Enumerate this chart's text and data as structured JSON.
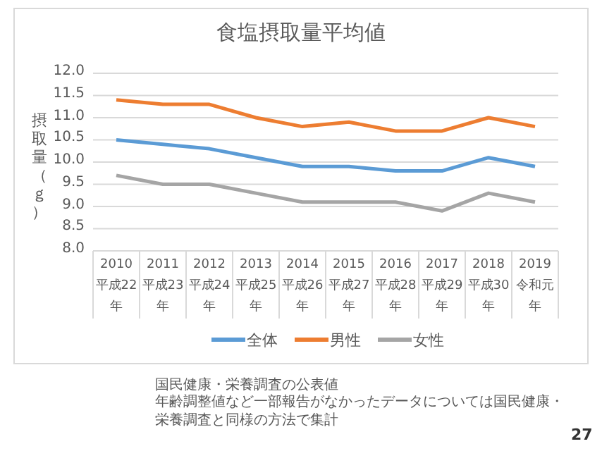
{
  "chart_data": {
    "type": "line",
    "title": "食塩摂取量平均値",
    "ylabel": "摂取量（ｇ）",
    "categories": [
      "2010 平成22年",
      "2011 平成23年",
      "2012 平成24年",
      "2013 平成25年",
      "2014 平成26年",
      "2015 平成27年",
      "2016 平成28年",
      "2017 平成29年",
      "2018 平成30年",
      "2019 令和元年"
    ],
    "series": [
      {
        "name": "全体",
        "color": "#5b9bd5",
        "values": [
          10.5,
          10.4,
          10.3,
          10.1,
          9.9,
          9.9,
          9.8,
          9.8,
          10.1,
          9.9
        ]
      },
      {
        "name": "男性",
        "color": "#ed7d31",
        "values": [
          11.4,
          11.3,
          11.3,
          11.0,
          10.8,
          10.9,
          10.7,
          10.7,
          11.0,
          10.8
        ]
      },
      {
        "name": "女性",
        "color": "#a5a5a5",
        "values": [
          9.7,
          9.5,
          9.5,
          9.3,
          9.1,
          9.1,
          9.1,
          8.9,
          9.3,
          9.1
        ]
      }
    ],
    "ylim": [
      8,
      12
    ],
    "yticks": [
      {
        "value": 8,
        "label": "8.0"
      },
      {
        "value": 8.5,
        "label": "8.5"
      },
      {
        "value": 9,
        "label": "9.0"
      },
      {
        "value": 9.5,
        "label": "9.5"
      },
      {
        "value": 10,
        "label": "10.0"
      },
      {
        "value": 10.5,
        "label": "10.5"
      },
      {
        "value": 11,
        "label": "11.0"
      },
      {
        "value": 11.5,
        "label": "11.5"
      },
      {
        "value": 12,
        "label": "12.0"
      }
    ],
    "grid": "y",
    "legend": "bottom",
    "marker": "none",
    "line_style": "solid",
    "annotations": [
      "国民健康・栄養調査の公表値",
      "年齢調整値など一部報告がなかったデータについては国民健康・栄養調査と同様の方法で集計",
      "27"
    ]
  }
}
